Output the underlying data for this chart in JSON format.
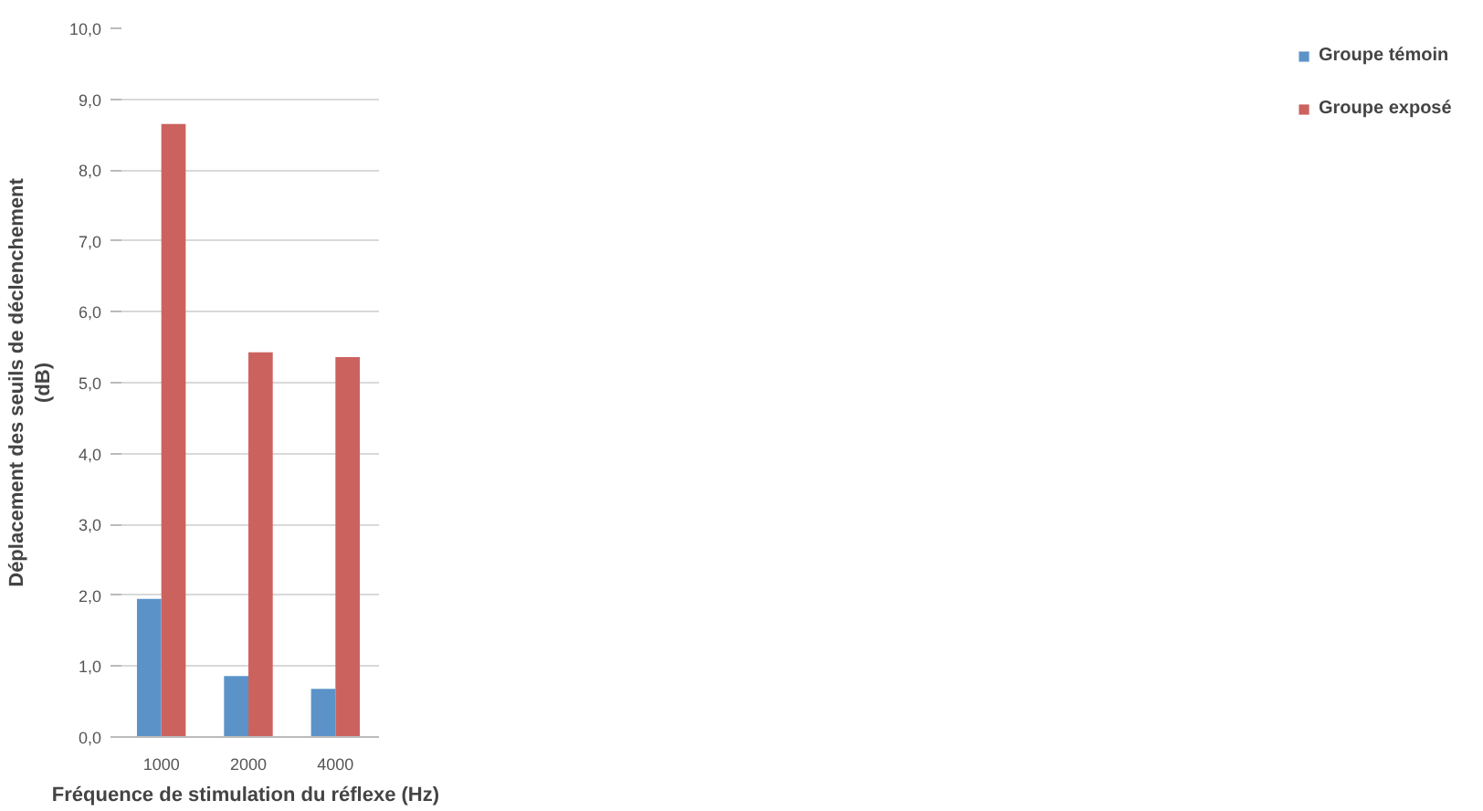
{
  "chart_data": {
    "type": "bar",
    "xlabel": "Fréquence  de stimulation du réflexe (Hz)",
    "ylabel": "Déplacement des seuils de déclenchement\n(dB)",
    "categories": [
      "1000",
      "2000",
      "4000"
    ],
    "series": [
      {
        "name": "Groupe témoin",
        "color": "#5b93c9",
        "values": [
          1.95,
          0.86,
          0.68
        ]
      },
      {
        "name": "Groupe exposé",
        "color": "#cc625e",
        "values": [
          8.65,
          5.43,
          5.36
        ]
      }
    ],
    "ylim": [
      0,
      10
    ],
    "yticks": [
      {
        "value": 0,
        "label": "0,0"
      },
      {
        "value": 1,
        "label": "1,0"
      },
      {
        "value": 2,
        "label": "2,0"
      },
      {
        "value": 3,
        "label": "3,0"
      },
      {
        "value": 4,
        "label": "4,0"
      },
      {
        "value": 5,
        "label": "5,0"
      },
      {
        "value": 6,
        "label": "6,0"
      },
      {
        "value": 7,
        "label": "7,0"
      },
      {
        "value": 8,
        "label": "8,0"
      },
      {
        "value": 9,
        "label": "9,0"
      },
      {
        "value": 10,
        "label": "10,0"
      }
    ],
    "grid": "y",
    "legend": "right"
  }
}
